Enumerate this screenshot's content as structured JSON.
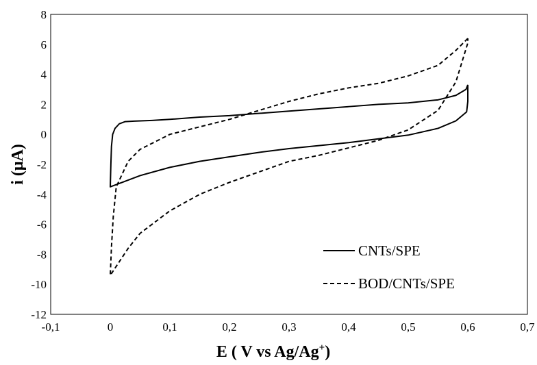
{
  "chart_data": {
    "type": "line",
    "xlabel_main": "E ( V vs Ag/Ag",
    "xlabel_sup": "+",
    "xlabel_end": ")",
    "ylabel": "i (μA)",
    "xlim": [
      -0.1,
      0.7
    ],
    "ylim": [
      -12,
      8
    ],
    "x_ticks": [
      -0.1,
      0,
      0.1,
      0.2,
      0.3,
      0.4,
      0.5,
      0.6,
      0.7
    ],
    "x_tick_labels": [
      "-0,1",
      "0",
      "0,1",
      "0,2",
      "0,3",
      "0,4",
      "0,5",
      "0,6",
      "0,7"
    ],
    "y_ticks": [
      -12,
      -10,
      -8,
      -6,
      -4,
      -2,
      0,
      2,
      4,
      6,
      8
    ],
    "y_tick_labels": [
      "-12",
      "-10",
      "-8",
      "-6",
      "-4",
      "-2",
      "0",
      "2",
      "4",
      "6",
      "8"
    ],
    "grid": false,
    "legend_position": "bottom-right",
    "series": [
      {
        "name": "CNTs/SPE",
        "style": "solid",
        "color": "#000000",
        "points": [
          [
            0.6,
            3.3
          ],
          [
            0.597,
            3.0
          ],
          [
            0.58,
            2.6
          ],
          [
            0.55,
            2.3
          ],
          [
            0.5,
            2.1
          ],
          [
            0.45,
            2.0
          ],
          [
            0.4,
            1.85
          ],
          [
            0.35,
            1.7
          ],
          [
            0.3,
            1.55
          ],
          [
            0.25,
            1.4
          ],
          [
            0.2,
            1.25
          ],
          [
            0.15,
            1.15
          ],
          [
            0.1,
            1.0
          ],
          [
            0.07,
            0.93
          ],
          [
            0.04,
            0.88
          ],
          [
            0.025,
            0.85
          ],
          [
            0.015,
            0.7
          ],
          [
            0.008,
            0.4
          ],
          [
            0.004,
            0.0
          ],
          [
            0.002,
            -0.8
          ],
          [
            0.001,
            -2.0
          ],
          [
            0.0,
            -3.5
          ],
          [
            0.02,
            -3.2
          ],
          [
            0.05,
            -2.75
          ],
          [
            0.1,
            -2.2
          ],
          [
            0.15,
            -1.8
          ],
          [
            0.2,
            -1.5
          ],
          [
            0.25,
            -1.2
          ],
          [
            0.3,
            -0.95
          ],
          [
            0.35,
            -0.75
          ],
          [
            0.4,
            -0.55
          ],
          [
            0.45,
            -0.3
          ],
          [
            0.5,
            -0.05
          ],
          [
            0.55,
            0.4
          ],
          [
            0.58,
            0.9
          ],
          [
            0.598,
            1.5
          ],
          [
            0.6,
            2.2
          ],
          [
            0.6,
            3.3
          ]
        ]
      },
      {
        "name": "BOD/CNTs/SPE",
        "style": "dashed",
        "color": "#000000",
        "points": [
          [
            0.6,
            6.4
          ],
          [
            0.58,
            5.6
          ],
          [
            0.55,
            4.6
          ],
          [
            0.5,
            3.9
          ],
          [
            0.45,
            3.4
          ],
          [
            0.4,
            3.1
          ],
          [
            0.35,
            2.7
          ],
          [
            0.3,
            2.2
          ],
          [
            0.25,
            1.6
          ],
          [
            0.2,
            1.0
          ],
          [
            0.15,
            0.5
          ],
          [
            0.1,
            0.0
          ],
          [
            0.05,
            -1.0
          ],
          [
            0.03,
            -1.8
          ],
          [
            0.01,
            -3.5
          ],
          [
            0.005,
            -5.5
          ],
          [
            0.002,
            -7.5
          ],
          [
            0.0,
            -9.4
          ],
          [
            0.01,
            -8.8
          ],
          [
            0.03,
            -7.6
          ],
          [
            0.05,
            -6.6
          ],
          [
            0.1,
            -5.1
          ],
          [
            0.15,
            -4.0
          ],
          [
            0.2,
            -3.2
          ],
          [
            0.25,
            -2.5
          ],
          [
            0.3,
            -1.8
          ],
          [
            0.35,
            -1.4
          ],
          [
            0.4,
            -0.9
          ],
          [
            0.45,
            -0.4
          ],
          [
            0.5,
            0.3
          ],
          [
            0.55,
            1.6
          ],
          [
            0.58,
            3.5
          ],
          [
            0.6,
            6.1
          ],
          [
            0.6,
            6.4
          ]
        ]
      }
    ]
  }
}
